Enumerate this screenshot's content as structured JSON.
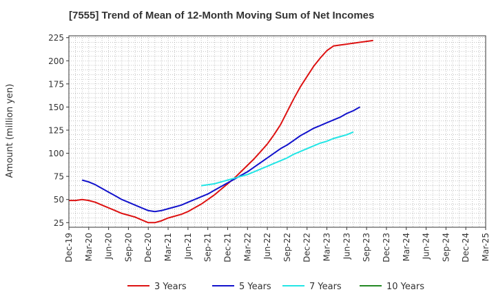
{
  "chart_data": {
    "type": "line",
    "title": "[7555]  Trend of Mean of 12-Month Moving Sum of Net Incomes",
    "xlabel": "",
    "ylabel": "Amount (million yen)",
    "ylim": [
      20,
      227
    ],
    "yticks": [
      25,
      50,
      75,
      100,
      125,
      150,
      175,
      200,
      225
    ],
    "x_tick_labels": [
      "Dec-19",
      "Mar-20",
      "Jun-20",
      "Sep-20",
      "Dec-20",
      "Mar-21",
      "Jun-21",
      "Sep-21",
      "Dec-21",
      "Mar-22",
      "Jun-22",
      "Sep-22",
      "Dec-22",
      "Mar-23",
      "Jun-23",
      "Sep-23",
      "Dec-23",
      "Mar-24",
      "Jun-24",
      "Sep-24",
      "Dec-24",
      "Mar-25"
    ],
    "grid": true,
    "legend_position": "bottom",
    "series": [
      {
        "name": "3 Years",
        "color": "#dd1111",
        "values": [
          49,
          49,
          50,
          49,
          47,
          44,
          41,
          38,
          35,
          33,
          31,
          28,
          25,
          25,
          27,
          30,
          32,
          34,
          37,
          41,
          45,
          50,
          55,
          61,
          67,
          73,
          80,
          87,
          94,
          102,
          110,
          120,
          131,
          145,
          159,
          172,
          183,
          194,
          203,
          211,
          216,
          217,
          218,
          219,
          220,
          221,
          222
        ]
      },
      {
        "name": "5 Years",
        "color": "#1111cc",
        "values": [
          null,
          null,
          71,
          69,
          66,
          62,
          58,
          54,
          50,
          47,
          44,
          41,
          38,
          37,
          38,
          40,
          42,
          44,
          47,
          50,
          53,
          56,
          60,
          64,
          68,
          72,
          76,
          80,
          85,
          90,
          95,
          100,
          105,
          109,
          114,
          119,
          123,
          127,
          130,
          133,
          136,
          139,
          143,
          146,
          150
        ]
      },
      {
        "name": "7 Years",
        "color": "#22e5e5",
        "values": [
          null,
          null,
          null,
          null,
          null,
          null,
          null,
          null,
          null,
          null,
          null,
          null,
          null,
          null,
          null,
          null,
          null,
          null,
          null,
          null,
          65,
          66,
          67,
          69,
          71,
          73,
          75,
          77,
          80,
          83,
          86,
          89,
          92,
          95,
          99,
          102,
          105,
          108,
          111,
          113,
          116,
          118,
          120,
          123
        ]
      },
      {
        "name": "10 Years",
        "color": "#228822",
        "values": []
      }
    ]
  }
}
